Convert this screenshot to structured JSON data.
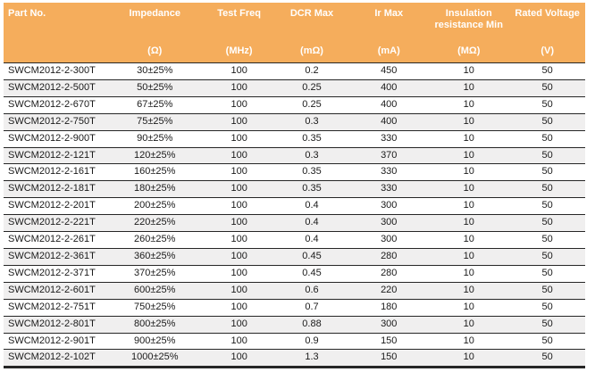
{
  "colors": {
    "header_bg": "#F5AD5C",
    "header_text": "#FFFFFF",
    "row_alt_bg": "#F0EFEF",
    "row_bg": "#FFFFFF",
    "separator": "#262626",
    "body_text": "#1A1A1A"
  },
  "table": {
    "columns": [
      {
        "label": "Part No.",
        "unit": ""
      },
      {
        "label": "Impedance",
        "unit": "(Ω)"
      },
      {
        "label": "Test Freq",
        "unit": "(MHz)"
      },
      {
        "label": "DCR Max",
        "unit": "(mΩ)"
      },
      {
        "label": "Ir Max",
        "unit": "(mA)"
      },
      {
        "label": "Insulation resistance Min",
        "unit": "(MΩ)"
      },
      {
        "label": "Rated Voltage",
        "unit": "(V)"
      }
    ],
    "rows": [
      [
        "SWCM2012-2-300T",
        "30±25%",
        "100",
        "0.2",
        "450",
        "10",
        "50"
      ],
      [
        "SWCM2012-2-500T",
        "50±25%",
        "100",
        "0.25",
        "400",
        "10",
        "50"
      ],
      [
        "SWCM2012-2-670T",
        "67±25%",
        "100",
        "0.25",
        "400",
        "10",
        "50"
      ],
      [
        "SWCM2012-2-750T",
        "75±25%",
        "100",
        "0.3",
        "400",
        "10",
        "50"
      ],
      [
        "SWCM2012-2-900T",
        "90±25%",
        "100",
        "0.35",
        "330",
        "10",
        "50"
      ],
      [
        "SWCM2012-2-121T",
        "120±25%",
        "100",
        "0.3",
        "370",
        "10",
        "50"
      ],
      [
        "SWCM2012-2-161T",
        "160±25%",
        "100",
        "0.35",
        "330",
        "10",
        "50"
      ],
      [
        "SWCM2012-2-181T",
        "180±25%",
        "100",
        "0.35",
        "330",
        "10",
        "50"
      ],
      [
        "SWCM2012-2-201T",
        "200±25%",
        "100",
        "0.4",
        "300",
        "10",
        "50"
      ],
      [
        "SWCM2012-2-221T",
        "220±25%",
        "100",
        "0.4",
        "300",
        "10",
        "50"
      ],
      [
        "SWCM2012-2-261T",
        "260±25%",
        "100",
        "0.4",
        "300",
        "10",
        "50"
      ],
      [
        "SWCM2012-2-361T",
        "360±25%",
        "100",
        "0.45",
        "280",
        "10",
        "50"
      ],
      [
        "SWCM2012-2-371T",
        "370±25%",
        "100",
        "0.45",
        "280",
        "10",
        "50"
      ],
      [
        "SWCM2012-2-601T",
        "600±25%",
        "100",
        "0.6",
        "220",
        "10",
        "50"
      ],
      [
        "SWCM2012-2-751T",
        "750±25%",
        "100",
        "0.7",
        "180",
        "10",
        "50"
      ],
      [
        "SWCM2012-2-801T",
        "800±25%",
        "100",
        "0.88",
        "300",
        "10",
        "50"
      ],
      [
        "SWCM2012-2-901T",
        "900±25%",
        "100",
        "0.9",
        "150",
        "10",
        "50"
      ],
      [
        "SWCM2012-2-102T",
        "1000±25%",
        "100",
        "1.3",
        "150",
        "10",
        "50"
      ]
    ]
  }
}
